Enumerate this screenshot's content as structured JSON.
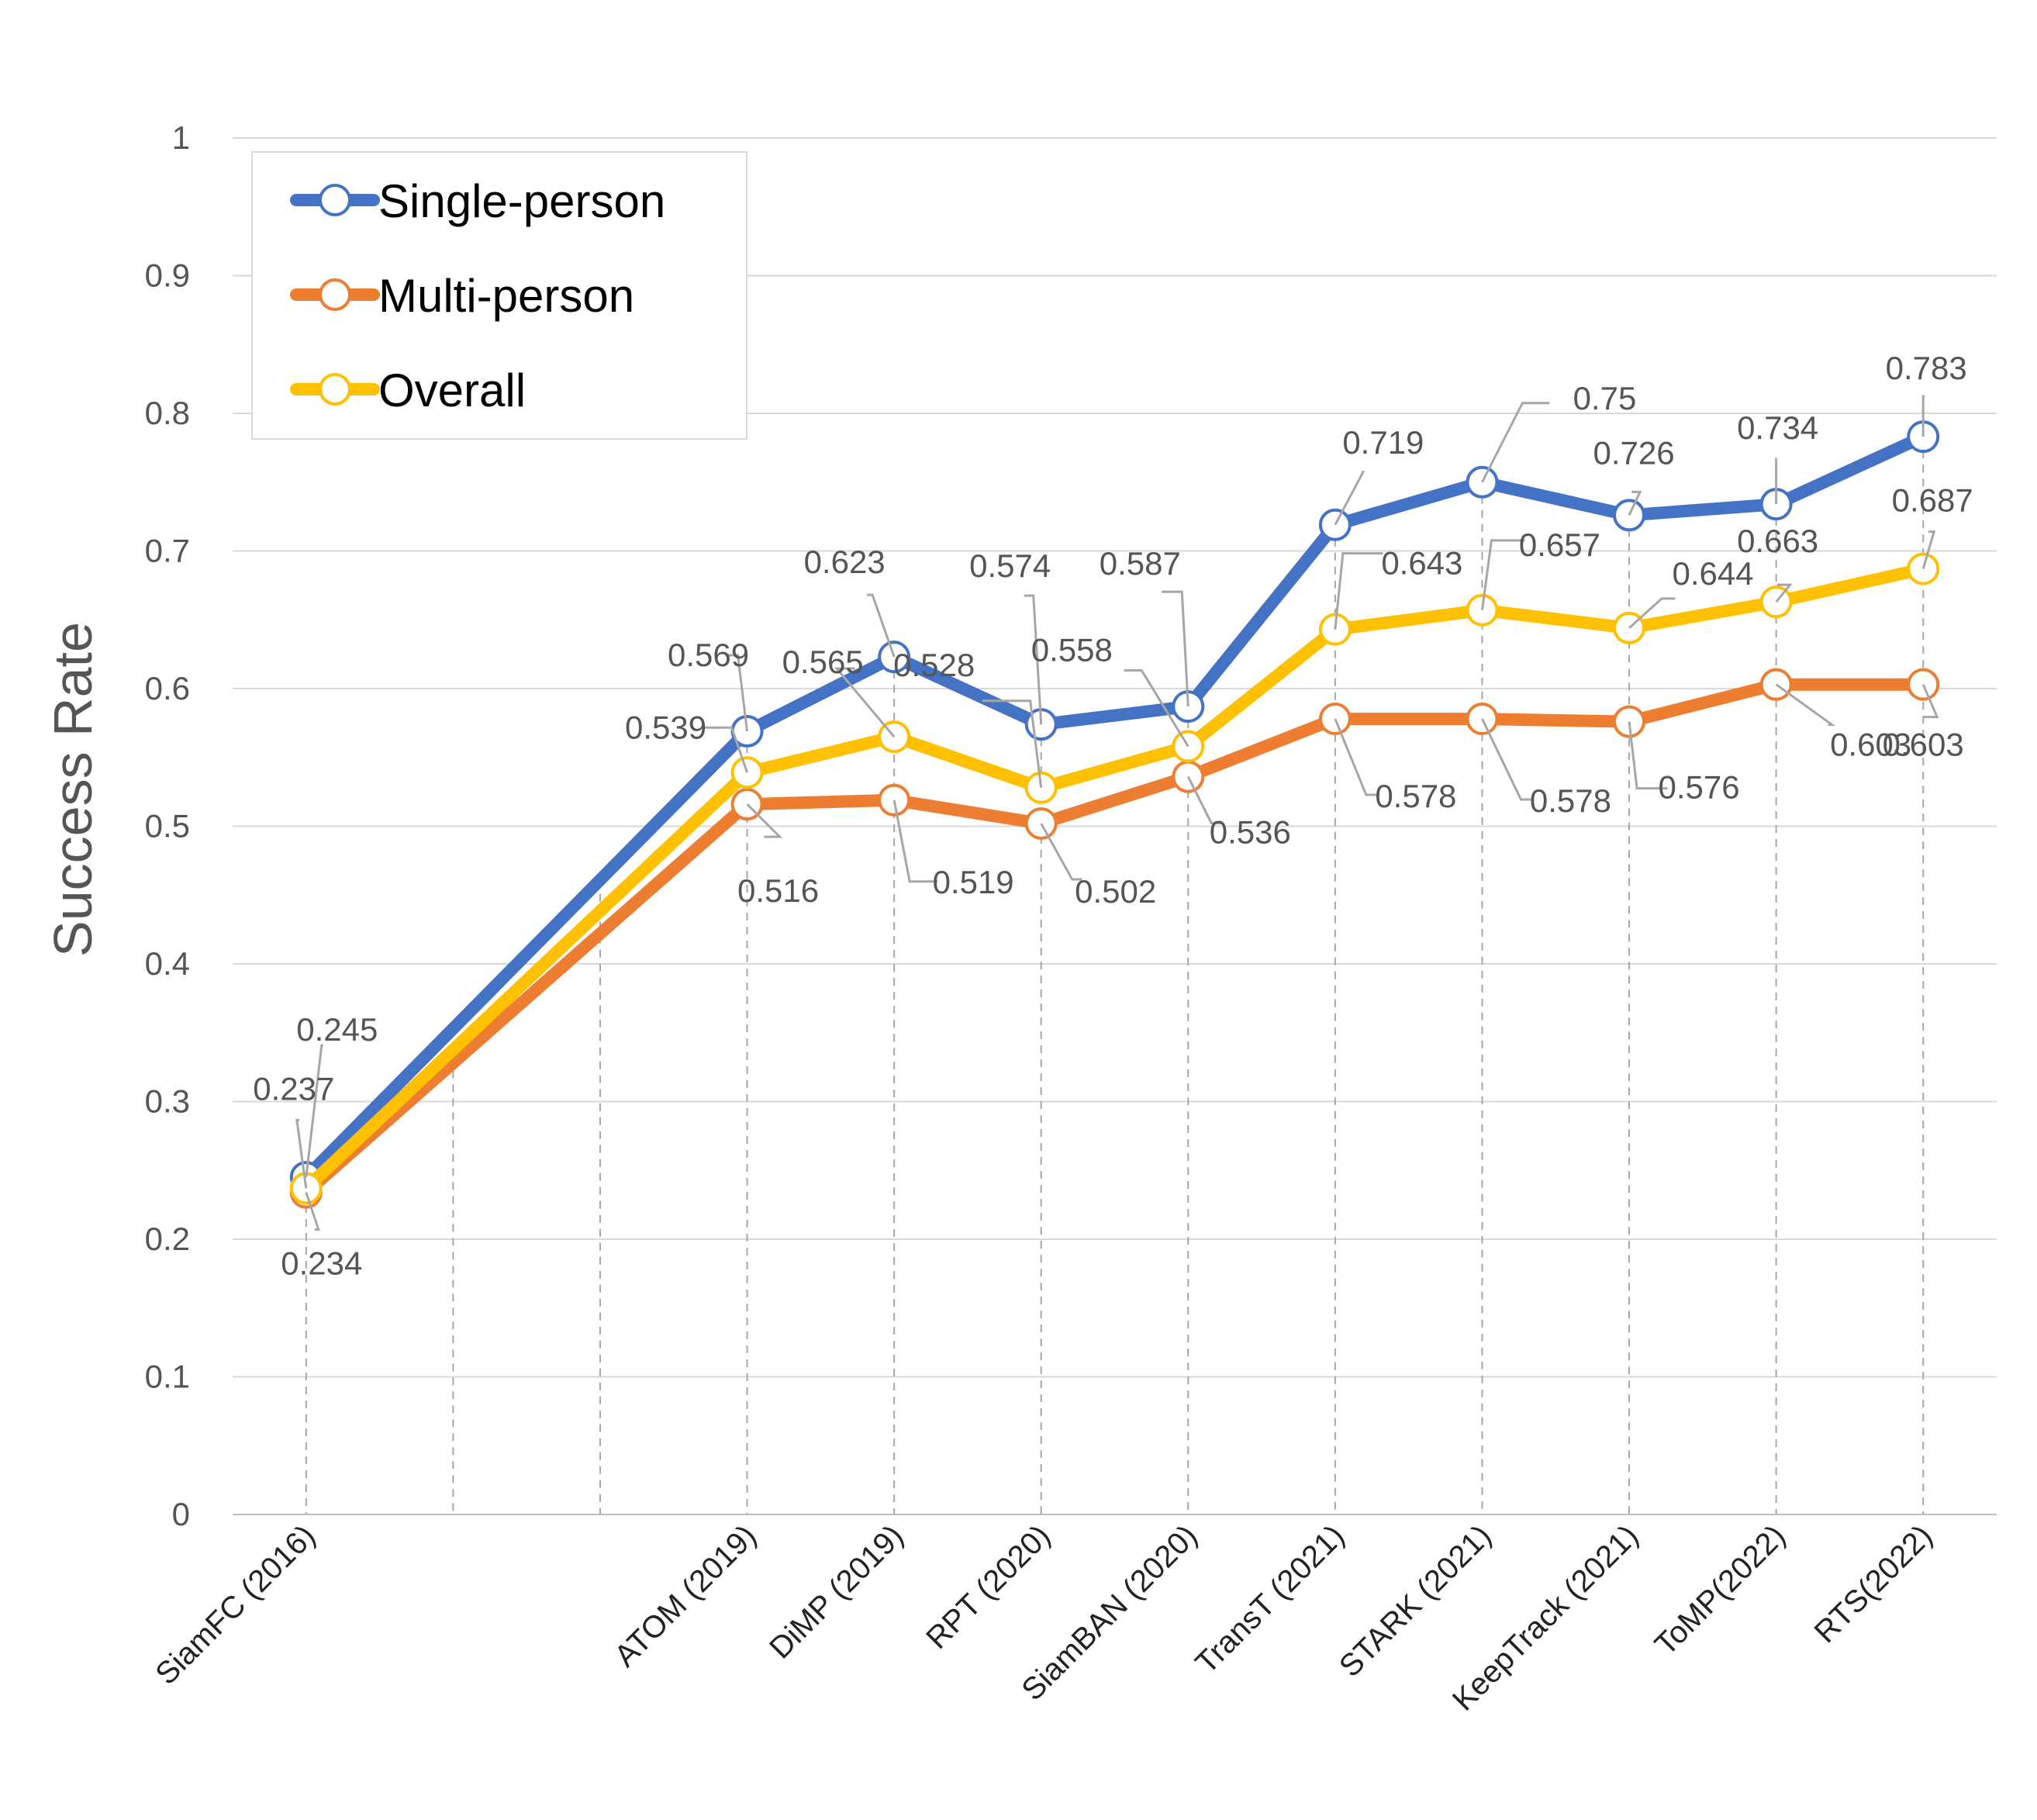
{
  "chart_data": {
    "type": "line",
    "title": "",
    "xlabel": "",
    "ylabel": "Success Rate",
    "ylim": [
      0,
      1
    ],
    "yticks": [
      "0",
      "0.1",
      "0.2",
      "0.3",
      "0.4",
      "0.5",
      "0.6",
      "0.7",
      "0.8",
      "0.9",
      "1"
    ],
    "grid": "horizontal solid, vertical dashed drop lines",
    "legend": "top-left",
    "categories": [
      "SiamFC (2016)",
      "",
      "",
      "ATOM (2019)",
      "DiMP (2019)",
      "RPT (2020)",
      "SiamBAN (2020)",
      "TransT (2021)",
      "STARK (2021)",
      "KeepTrack (2021)",
      "ToMP(2022)",
      "RTS(2022)"
    ],
    "series": [
      {
        "name": "Single-person",
        "color": "#4472C4",
        "values": [
          0.245,
          null,
          null,
          0.569,
          0.623,
          0.574,
          0.587,
          0.719,
          0.75,
          0.726,
          0.734,
          0.783
        ]
      },
      {
        "name": "Multi-person",
        "color": "#ED7D31",
        "values": [
          0.234,
          null,
          null,
          0.516,
          0.519,
          0.502,
          0.536,
          0.578,
          0.578,
          0.576,
          0.603,
          0.603
        ]
      },
      {
        "name": "Overall",
        "color": "#FFC000",
        "values": [
          0.237,
          null,
          null,
          0.539,
          0.565,
          0.528,
          0.558,
          0.643,
          0.657,
          0.644,
          0.663,
          0.687
        ]
      }
    ],
    "data_labels": {
      "Single-person": [
        "0.245",
        null,
        null,
        "0.569",
        "0.623",
        "0.574",
        "0.587",
        "0.719",
        "0.75",
        "0.726",
        "0.734",
        "0.783"
      ],
      "Multi-person": [
        "0.234",
        null,
        null,
        "0.516",
        "0.519",
        "0.502",
        "0.536",
        "0.578",
        "0.578",
        "0.576",
        "0.603",
        "0.603"
      ],
      "Overall": [
        "0.237",
        null,
        null,
        "0.539",
        "0.565",
        "0.528",
        "0.558",
        "0.643",
        "0.657",
        "0.644",
        "0.663",
        "0.687"
      ]
    }
  }
}
